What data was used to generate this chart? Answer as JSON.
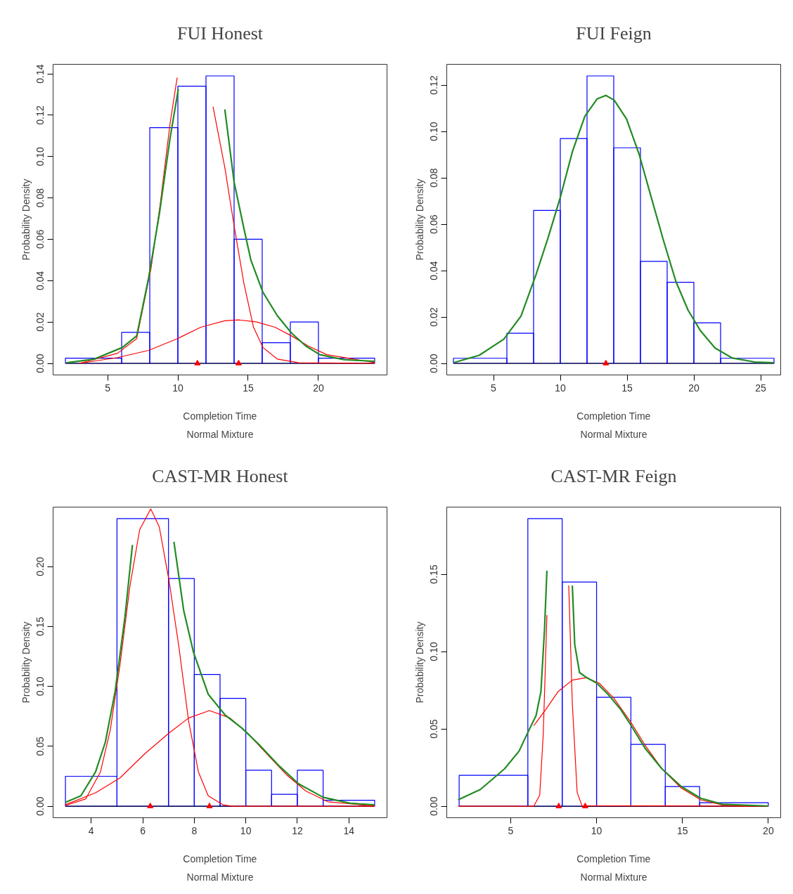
{
  "chart_data": [
    {
      "type": "histogram",
      "title": "FUI Honest",
      "xlabel": "Completion Time",
      "subtitle": "Normal Mixture",
      "ylabel": "Probability Density",
      "bins": [
        2,
        6,
        8,
        10,
        12,
        14,
        16,
        18,
        20,
        24
      ],
      "values": [
        0.0025,
        0.015,
        0.114,
        0.134,
        0.139,
        0.06,
        0.01,
        0.02,
        0.0025
      ],
      "color": "#0000ff",
      "xlim": [
        1.12,
        24.88
      ],
      "ylim": [
        -0.0056,
        0.1446
      ],
      "xticks": [
        5,
        10,
        15,
        20
      ],
      "yticks": [
        {
          "value": 0,
          "label": "0.00"
        },
        {
          "value": 0.02,
          "label": "0.02"
        },
        {
          "value": 0.04,
          "label": "0.04"
        },
        {
          "value": 0.06,
          "label": "0.06"
        },
        {
          "value": 0.08,
          "label": "0.08"
        },
        {
          "value": 0.1,
          "label": "0.10"
        },
        {
          "value": 0.12,
          "label": "0.12"
        },
        {
          "value": 0.14,
          "label": "0.14"
        }
      ],
      "ref_lines": [
        {
          "axis": "y",
          "value": 0,
          "color": "#000000"
        }
      ],
      "series": [
        {
          "type": "line",
          "color": "#ff0000",
          "x": [
            3,
            5.71,
            7.07,
            8.08,
            8.76,
            9.44,
            9.95,
            10.63,
            11.35,
            12.07,
            12.5,
            13.34,
            14.0,
            14.7,
            15.38,
            16.05,
            17.07,
            18.6,
            24.0
          ],
          "values": [
            0,
            0.0049,
            0.012,
            0.0456,
            0.0779,
            0.1158,
            0.1382,
            null,
            null,
            null,
            0.1242,
            0.0947,
            0.0666,
            0.0386,
            0.0175,
            0.0077,
            0.0021,
            0.0003,
            0
          ]
        },
        {
          "type": "line",
          "color": "#ff0000",
          "x": [
            3,
            5.71,
            7.92,
            9.95,
            11.64,
            13.34,
            14.36,
            15.55,
            16.9,
            18.08,
            19.27,
            20.6,
            24.0
          ],
          "values": [
            0,
            0.0028,
            0.0063,
            0.0119,
            0.0175,
            0.0206,
            0.021,
            0.0201,
            0.0175,
            0.0133,
            0.0084,
            0.0042,
            0.0004
          ]
        },
        {
          "type": "line",
          "color": "#228b22",
          "x": [
            2.07,
            4.02,
            6.05,
            7.07,
            7.92,
            8.68,
            9.44,
            10.03,
            10.2,
            11.4,
            12.66,
            13.34,
            14.0,
            14.7,
            15.2,
            16.05,
            17.07,
            18.08,
            19.1,
            20.1,
            21.8,
            24.0
          ],
          "values": [
            0.0003,
            0.002,
            0.0077,
            0.0133,
            0.0414,
            0.0722,
            0.1087,
            0.1326,
            null,
            null,
            null,
            0.1228,
            0.0877,
            0.0652,
            0.0498,
            0.0344,
            0.0231,
            0.0147,
            0.0084,
            0.0042,
            0.0018,
            0.001
          ]
        },
        {
          "type": "scatter",
          "marker": "triangle",
          "color": "#ff0000",
          "x": [
            11.39,
            14.32
          ],
          "values": [
            0,
            0
          ]
        }
      ]
    },
    {
      "type": "histogram",
      "title": "FUI Feign",
      "xlabel": "Completion Time",
      "subtitle": "Normal Mixture",
      "ylabel": "Probability Density",
      "bins": [
        2,
        6,
        8,
        10,
        12,
        14,
        16,
        18,
        20,
        22,
        26
      ],
      "values": [
        0.0022,
        0.013,
        0.066,
        0.097,
        0.124,
        0.093,
        0.044,
        0.035,
        0.0175,
        0.0022
      ],
      "color": "#0000ff",
      "xlim": [
        1.5,
        26.5
      ],
      "ylim": [
        -0.005,
        0.129
      ],
      "xticks": [
        5,
        10,
        15,
        20,
        25
      ],
      "yticks": [
        {
          "value": 0,
          "label": "0.00"
        },
        {
          "value": 0.02,
          "label": "0.02"
        },
        {
          "value": 0.04,
          "label": "0.04"
        },
        {
          "value": 0.06,
          "label": "0.06"
        },
        {
          "value": 0.08,
          "label": "0.08"
        },
        {
          "value": 0.1,
          "label": "0.10"
        },
        {
          "value": 0.12,
          "label": "0.12"
        }
      ],
      "ref_lines": [
        {
          "axis": "y",
          "value": 0,
          "color": "#000000"
        }
      ],
      "series": [
        {
          "type": "line",
          "color": "#228b22",
          "x": [
            2.06,
            3.93,
            5.77,
            7.06,
            8.16,
            9.08,
            10.0,
            10.92,
            11.84,
            12.76,
            13.41,
            14.04,
            14.96,
            15.89,
            16.81,
            17.73,
            18.65,
            19.57,
            20.49,
            21.59,
            22.88,
            24.54,
            26.0
          ],
          "values": [
            0.0004,
            0.0035,
            0.0104,
            0.0204,
            0.0379,
            0.0541,
            0.0716,
            0.0916,
            0.1066,
            0.1141,
            0.1156,
            0.1135,
            0.1054,
            0.0904,
            0.0716,
            0.0529,
            0.0354,
            0.0229,
            0.0141,
            0.0066,
            0.0023,
            0.0006,
            0.0003
          ]
        },
        {
          "type": "scatter",
          "marker": "triangle",
          "color": "#ff0000",
          "x": [
            13.41
          ],
          "values": [
            0
          ]
        }
      ]
    },
    {
      "type": "histogram",
      "title": "CAST-MR Honest",
      "xlabel": "Completion Time",
      "subtitle": "Normal Mixture",
      "ylabel": "Probability Density",
      "bins": [
        3,
        5,
        7,
        8,
        9,
        10,
        11,
        12,
        13,
        15
      ],
      "values": [
        0.025,
        0.24,
        0.19,
        0.11,
        0.09,
        0.03,
        0.01,
        0.03,
        0.005
      ],
      "color": "#0000ff",
      "xlim": [
        2.52,
        15.48
      ],
      "ylim": [
        -0.0096,
        0.2496
      ],
      "xticks": [
        4,
        6,
        8,
        10,
        12,
        14
      ],
      "yticks": [
        {
          "value": 0,
          "label": "0.00"
        },
        {
          "value": 0.05,
          "label": "0.05"
        },
        {
          "value": 0.1,
          "label": "0.10"
        },
        {
          "value": 0.15,
          "label": "0.15"
        },
        {
          "value": 0.2,
          "label": "0.20"
        }
      ],
      "ref_lines": [
        {
          "axis": "y",
          "value": 0,
          "color": "#000000"
        }
      ],
      "series": [
        {
          "type": "line",
          "color": "#ff0000",
          "x": [
            2.99,
            3.79,
            4.36,
            4.74,
            5.12,
            5.5,
            5.88,
            6.31,
            6.64,
            7.02,
            7.4,
            7.78,
            8.16,
            8.54,
            9.11,
            9.49,
            15.0
          ],
          "values": [
            0.0005,
            0.0062,
            0.0287,
            0.0636,
            0.1185,
            0.1833,
            0.2307,
            0.2481,
            0.2332,
            0.1883,
            0.1334,
            0.0711,
            0.0287,
            0.0087,
            0.0012,
            0,
            0
          ]
        },
        {
          "type": "line",
          "color": "#ff0000",
          "x": [
            2.99,
            4.17,
            5.12,
            6.07,
            7.02,
            7.78,
            8.59,
            9.39,
            10.06,
            10.82,
            11.58,
            12.34,
            13.19,
            15.0
          ],
          "values": [
            0.0012,
            0.0112,
            0.0237,
            0.0436,
            0.0611,
            0.0736,
            0.0798,
            0.0736,
            0.0611,
            0.0436,
            0.0262,
            0.0125,
            0.0037,
            0.0002
          ]
        },
        {
          "type": "line",
          "color": "#228b22",
          "x": [
            2.99,
            3.6,
            4.17,
            4.55,
            4.93,
            5.31,
            5.6,
            5.79,
            6.4,
            6.97,
            7.21,
            7.59,
            7.97,
            8.54,
            9.2,
            9.87,
            10.53,
            11.29,
            12.05,
            13.0,
            14.05,
            15.0
          ],
          "values": [
            0.0032,
            0.0087,
            0.0287,
            0.0536,
            0.096,
            0.158,
            0.218,
            null,
            null,
            null,
            0.2207,
            0.1633,
            0.1284,
            0.0935,
            0.0761,
            0.0648,
            0.0511,
            0.0337,
            0.0187,
            0.0075,
            0.0025,
            0.0012
          ]
        },
        {
          "type": "scatter",
          "marker": "triangle",
          "color": "#ff0000",
          "x": [
            6.29,
            8.59
          ],
          "values": [
            0,
            0
          ]
        }
      ]
    },
    {
      "type": "histogram",
      "title": "CAST-MR Feign",
      "xlabel": "Completion Time",
      "subtitle": "Normal Mixture",
      "ylabel": "Probability Density",
      "bins": [
        2,
        6,
        8,
        10,
        12,
        14,
        16,
        20
      ],
      "values": [
        0.02,
        0.186,
        0.145,
        0.0705,
        0.04,
        0.0128,
        0.0023
      ],
      "color": "#0000ff",
      "xlim": [
        1.28,
        20.72
      ],
      "ylim": [
        -0.0074,
        0.1934
      ],
      "xticks": [
        5,
        10,
        15,
        20
      ],
      "yticks": [
        {
          "value": 0,
          "label": "0.00"
        },
        {
          "value": 0.05,
          "label": "0.05"
        },
        {
          "value": 0.1,
          "label": "0.10"
        },
        {
          "value": 0.15,
          "label": "0.15"
        }
      ],
      "ref_lines": [
        {
          "axis": "y",
          "value": 0,
          "color": "#000000"
        }
      ],
      "series": [
        {
          "type": "line",
          "color": "#ff0000",
          "x": [
            1.94,
            6.34,
            6.69,
            6.9,
            7.11,
            7.3,
            7.8,
            8.27,
            8.38,
            8.59,
            8.87,
            9.15,
            20.0
          ],
          "values": [
            0,
            0,
            0.0071,
            0.0472,
            0.1236,
            null,
            null,
            null,
            0.1427,
            0.0663,
            0.009,
            0.0004,
            0
          ]
        },
        {
          "type": "line",
          "color": "#ff0000",
          "x": [
            6.34,
            7.04,
            7.75,
            8.59,
            9.37,
            10.14,
            10.99,
            11.97,
            12.82,
            13.8,
            14.93,
            16.06,
            17.32,
            18.87
          ],
          "values": [
            0.052,
            0.0625,
            0.074,
            0.0816,
            0.0831,
            0.0797,
            0.0701,
            0.0548,
            0.0396,
            0.0243,
            0.0118,
            0.0042,
            0.0008,
            0
          ]
        },
        {
          "type": "line",
          "color": "#228b22",
          "x": [
            1.94,
            3.24,
            4.65,
            5.49,
            6.06,
            6.48,
            6.76,
            6.97,
            7.11,
            7.23,
            7.8,
            8.42,
            8.59,
            8.73,
            9.01,
            9.44,
            10.0,
            10.7,
            11.41,
            11.97,
            12.82,
            13.8,
            14.93,
            16.06,
            17.32,
            20.0
          ],
          "values": [
            0.0042,
            0.0109,
            0.0243,
            0.0357,
            0.0491,
            0.0587,
            0.074,
            0.1141,
            0.1523,
            null,
            null,
            null,
            0.1427,
            0.1045,
            0.0864,
            0.0831,
            0.0797,
            0.072,
            0.0625,
            0.0529,
            0.0376,
            0.0243,
            0.0128,
            0.0052,
            0.0013,
            0.0002
          ]
        },
        {
          "type": "scatter",
          "marker": "triangle",
          "color": "#ff0000",
          "x": [
            7.8,
            9.34
          ],
          "values": [
            0,
            0
          ]
        }
      ]
    }
  ]
}
